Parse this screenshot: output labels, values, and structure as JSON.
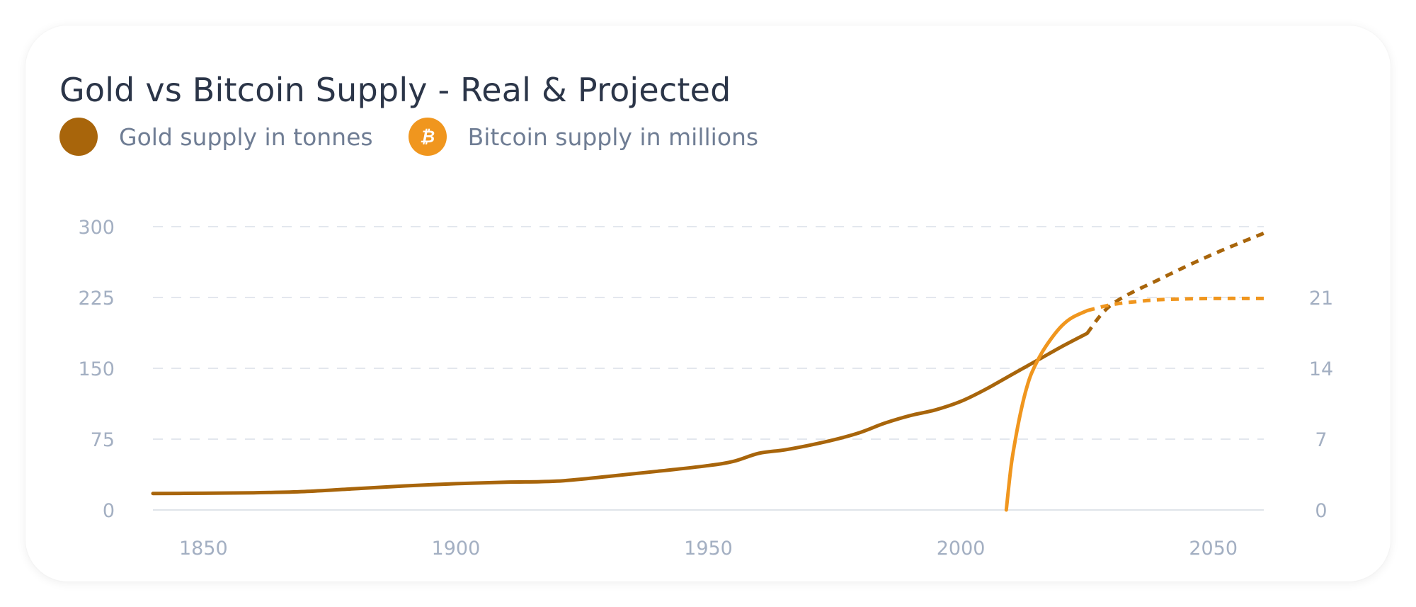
{
  "card": {
    "title": "Gold vs Bitcoin Supply - Real & Projected"
  },
  "legend": [
    {
      "label": "Gold supply in tonnes",
      "icon": "gold-dot-icon",
      "color": "#a8650b"
    },
    {
      "label": "Bitcoin supply in millions",
      "icon": "bitcoin-icon",
      "glyph": "₿",
      "color": "#f0961e"
    }
  ],
  "chart_data": {
    "type": "line",
    "title": "Gold vs Bitcoin Supply - Real & Projected",
    "xlabel": "",
    "ylabel": "",
    "xlim": [
      1840,
      2060
    ],
    "x_ticks": [
      1850,
      1900,
      1950,
      2000,
      2050
    ],
    "y_left": {
      "lim": [
        0,
        300
      ],
      "ticks": [
        0,
        75,
        150,
        225,
        300
      ]
    },
    "y_right": {
      "lim": [
        0,
        28
      ],
      "ticks": [
        0,
        7,
        14,
        21
      ]
    },
    "grid": true,
    "legend_position": "top-left",
    "series": [
      {
        "name": "Gold supply in tonnes",
        "axis": "left",
        "color": "#a8650b",
        "x": [
          1840,
          1850,
          1860,
          1870,
          1880,
          1890,
          1900,
          1910,
          1920,
          1930,
          1940,
          1950,
          1955,
          1960,
          1965,
          1970,
          1975,
          1980,
          1985,
          1990,
          1995,
          2000,
          2005,
          2010,
          2015,
          2020,
          2025
        ],
        "values": [
          17.5,
          17.7,
          18.2,
          19.5,
          22.5,
          25.5,
          27.8,
          29.5,
          30.5,
          35.5,
          41,
          47,
          51.5,
          60,
          63.5,
          68.5,
          74.5,
          82,
          92,
          100,
          106,
          115,
          128,
          143,
          158,
          173,
          187
        ]
      },
      {
        "name": "Gold supply in tonnes (projected)",
        "axis": "left",
        "color": "#a8650b",
        "dashed": true,
        "x": [
          2025,
          2030,
          2040,
          2050,
          2060
        ],
        "values": [
          187,
          218,
          246,
          271,
          293
        ]
      },
      {
        "name": "Bitcoin supply in millions",
        "axis": "right",
        "color": "#f0961e",
        "x": [
          2009,
          2010,
          2011,
          2012,
          2013,
          2014,
          2016,
          2018,
          2020,
          2022,
          2025
        ],
        "values": [
          0,
          4.5,
          7.5,
          10,
          12,
          13.5,
          15.5,
          17,
          18.2,
          19,
          19.7
        ]
      },
      {
        "name": "Bitcoin supply in millions (projected)",
        "axis": "right",
        "color": "#f0961e",
        "dashed": true,
        "x": [
          2025,
          2030,
          2035,
          2040,
          2050,
          2060
        ],
        "values": [
          19.7,
          20.3,
          20.6,
          20.8,
          20.9,
          20.9
        ]
      }
    ]
  }
}
